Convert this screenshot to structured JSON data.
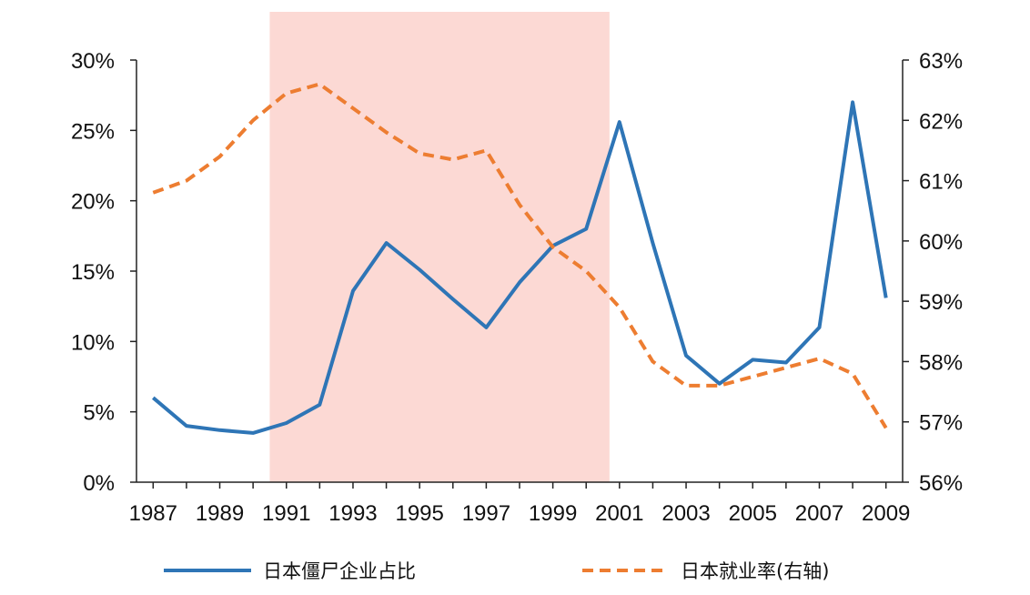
{
  "chart_data": {
    "type": "line",
    "x": [
      1987,
      1988,
      1989,
      1990,
      1991,
      1992,
      1993,
      1994,
      1995,
      1996,
      1997,
      1998,
      1999,
      2000,
      2001,
      2002,
      2003,
      2004,
      2005,
      2006,
      2007,
      2008,
      2009
    ],
    "x_tick_labels": [
      "1987",
      "1989",
      "1991",
      "1993",
      "1995",
      "1997",
      "1999",
      "2001",
      "2003",
      "2005",
      "2007",
      "2009"
    ],
    "y_left": {
      "range": [
        0,
        30
      ],
      "tick_labels": [
        "0%",
        "5%",
        "10%",
        "15%",
        "20%",
        "25%",
        "30%"
      ]
    },
    "y_right": {
      "range": [
        56,
        63
      ],
      "tick_labels": [
        "56%",
        "57%",
        "58%",
        "59%",
        "60%",
        "61%",
        "62%",
        "63%"
      ]
    },
    "shaded_region": {
      "x_start": 1990.5,
      "x_end": 2000.7,
      "color": "#fcd9d4"
    },
    "grid": false,
    "legend_position": "bottom",
    "series": [
      {
        "name": "日本僵尸企业占比",
        "axis": "left",
        "style": "solid",
        "color": "#2e75b6",
        "values": [
          6.0,
          4.0,
          3.7,
          3.5,
          4.2,
          5.5,
          13.6,
          17.0,
          15.1,
          13.0,
          11.0,
          14.2,
          16.8,
          18.0,
          25.6,
          17.0,
          9.0,
          7.0,
          8.7,
          8.5,
          11.0,
          27.0,
          13.1
        ]
      },
      {
        "name": "日本就业率(右轴)",
        "axis": "right",
        "style": "dashed",
        "color": "#ed7d31",
        "values": [
          60.8,
          61.0,
          61.4,
          62.0,
          62.45,
          62.6,
          62.2,
          61.8,
          61.45,
          61.35,
          61.5,
          60.6,
          59.9,
          59.5,
          58.9,
          58.0,
          57.6,
          57.6,
          57.75,
          57.9,
          58.05,
          57.8,
          56.9
        ]
      }
    ]
  }
}
